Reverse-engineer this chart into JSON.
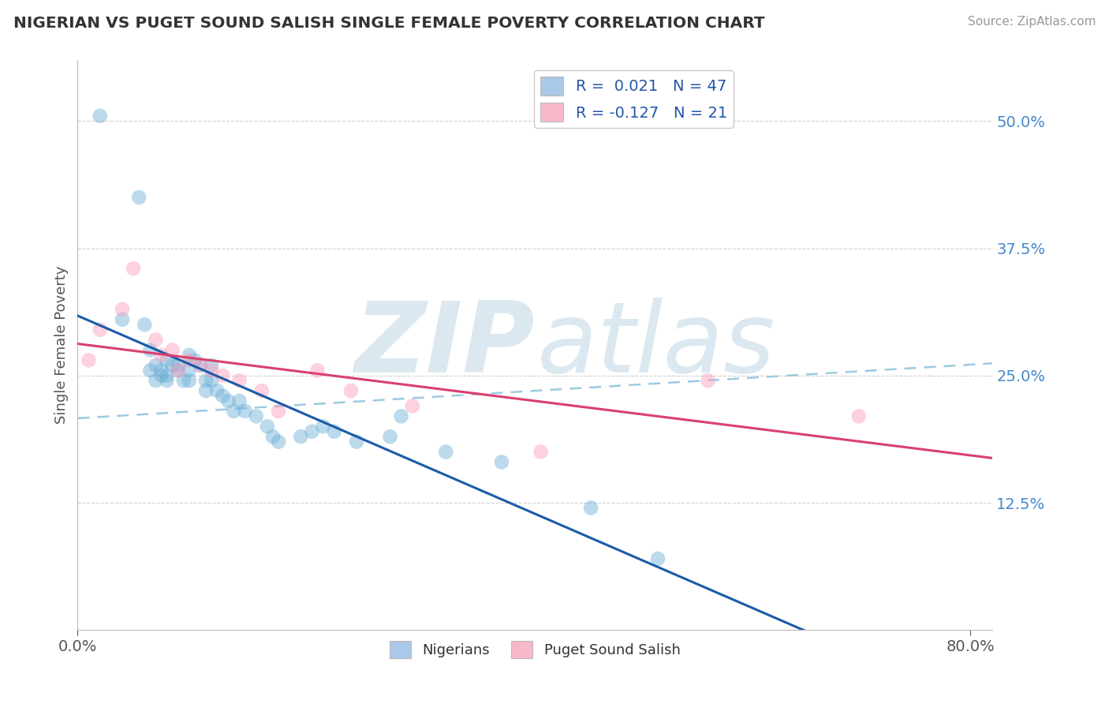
{
  "title": "NIGERIAN VS PUGET SOUND SALISH SINGLE FEMALE POVERTY CORRELATION CHART",
  "source": "Source: ZipAtlas.com",
  "xlim": [
    0.0,
    0.82
  ],
  "ylim": [
    0.0,
    0.56
  ],
  "ytick_vals": [
    0.125,
    0.25,
    0.375,
    0.5
  ],
  "xtick_vals": [
    0.0,
    0.8
  ],
  "ylabel": "Single Female Poverty",
  "r1": "0.021",
  "n1": "47",
  "r2": "-0.127",
  "n2": "21",
  "nigerians_x": [
    0.02,
    0.04,
    0.055,
    0.06,
    0.065,
    0.065,
    0.07,
    0.07,
    0.075,
    0.075,
    0.08,
    0.08,
    0.08,
    0.085,
    0.09,
    0.09,
    0.095,
    0.1,
    0.1,
    0.1,
    0.105,
    0.11,
    0.115,
    0.115,
    0.12,
    0.12,
    0.125,
    0.13,
    0.135,
    0.14,
    0.145,
    0.15,
    0.16,
    0.17,
    0.175,
    0.18,
    0.2,
    0.21,
    0.22,
    0.23,
    0.25,
    0.28,
    0.29,
    0.33,
    0.38,
    0.46,
    0.52
  ],
  "nigerians_y": [
    0.505,
    0.305,
    0.425,
    0.3,
    0.275,
    0.255,
    0.245,
    0.26,
    0.25,
    0.255,
    0.245,
    0.25,
    0.265,
    0.26,
    0.255,
    0.26,
    0.245,
    0.245,
    0.255,
    0.27,
    0.265,
    0.26,
    0.245,
    0.235,
    0.26,
    0.245,
    0.235,
    0.23,
    0.225,
    0.215,
    0.225,
    0.215,
    0.21,
    0.2,
    0.19,
    0.185,
    0.19,
    0.195,
    0.2,
    0.195,
    0.185,
    0.19,
    0.21,
    0.175,
    0.165,
    0.12,
    0.07
  ],
  "salish_x": [
    0.01,
    0.02,
    0.04,
    0.05,
    0.07,
    0.075,
    0.085,
    0.09,
    0.1,
    0.11,
    0.12,
    0.13,
    0.145,
    0.165,
    0.18,
    0.215,
    0.245,
    0.3,
    0.415,
    0.565,
    0.7
  ],
  "salish_y": [
    0.265,
    0.295,
    0.315,
    0.355,
    0.285,
    0.27,
    0.275,
    0.255,
    0.265,
    0.26,
    0.255,
    0.25,
    0.245,
    0.235,
    0.215,
    0.255,
    0.235,
    0.22,
    0.175,
    0.245,
    0.21
  ],
  "blue_dot_color": "#6baed6",
  "pink_dot_color": "#fc9bb9",
  "blue_line_color": "#1a5ba8",
  "pink_line_color": "#d94070",
  "dashed_line_color": "#9ecae1",
  "watermark_color": "#dce8f0",
  "background_color": "#ffffff",
  "grid_color": "#d0d0d0",
  "legend1_color": "#aac8e8",
  "legend2_color": "#f8b8c8"
}
